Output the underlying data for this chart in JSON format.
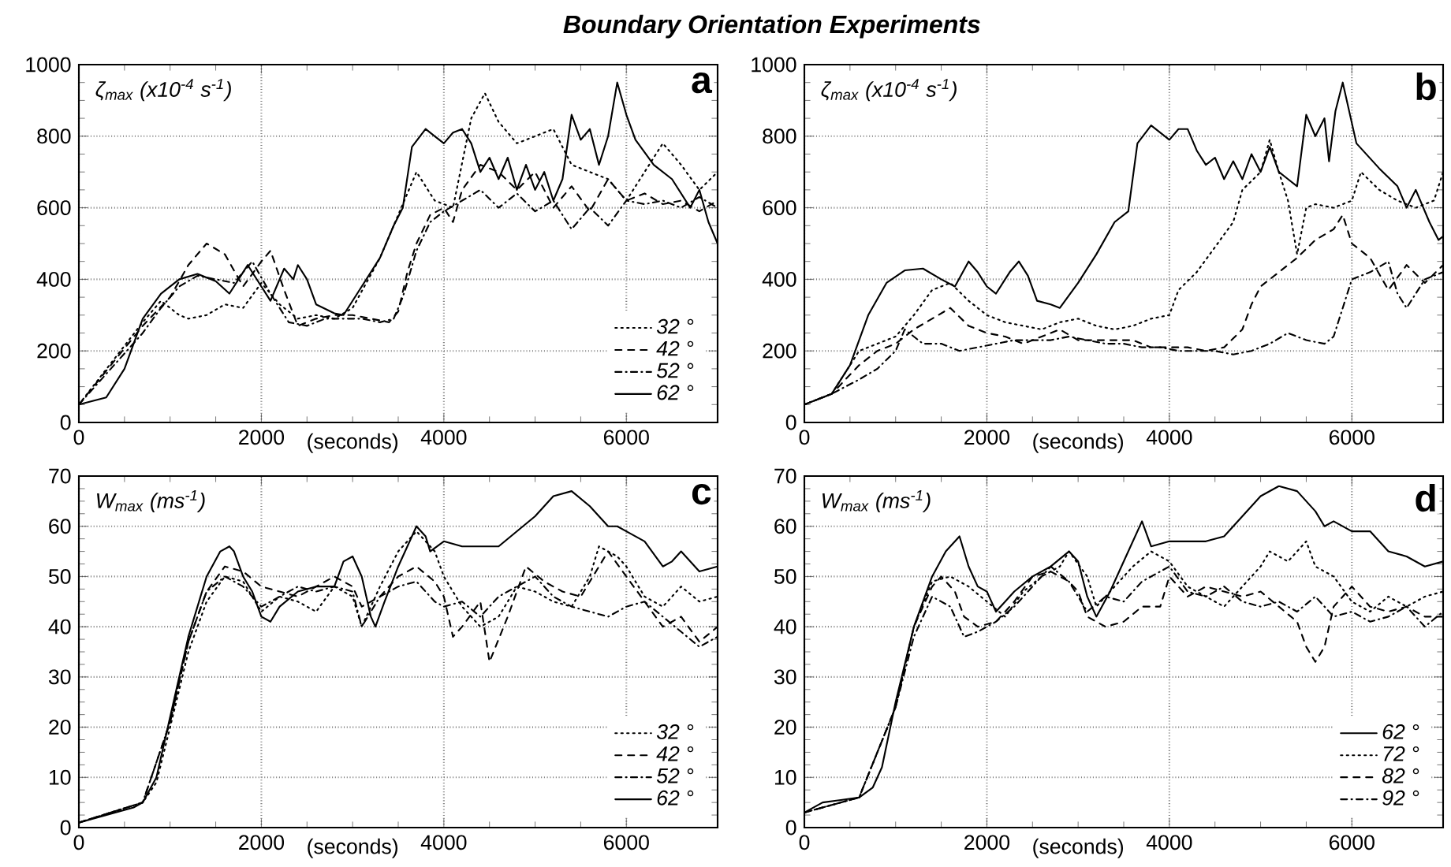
{
  "chart_data": [
    {
      "type": "line",
      "title": "Boundary Orientation Experiments",
      "xlabel": "(seconds)",
      "ylabel": "ζ$_{max}$ (x10$^{-4}$ s$^{-1}$)",
      "annotations": [
        "a"
      ],
      "xlim": [
        0,
        7000
      ],
      "ylim": [
        0,
        1000
      ],
      "xticks": [
        0,
        2000,
        4000,
        6000
      ],
      "yticks": [
        0,
        200,
        400,
        600,
        800,
        1000
      ],
      "grid": true,
      "legend": "bottom right",
      "marker": "none",
      "series": [
        {
          "name": "32 °",
          "color": "#000000",
          "line_style": "dotted",
          "x": [
            0,
            700,
            900,
            1100,
            1200,
            1400,
            1600,
            1800,
            2000,
            2200,
            2400,
            2600,
            2800,
            3000,
            3300,
            3500,
            3700,
            3900,
            4100,
            4300,
            4450,
            4600,
            4800,
            5000,
            5200,
            5400,
            5600,
            5800,
            6000,
            6200,
            6400,
            6600,
            6800,
            7000
          ],
          "values": [
            50,
            280,
            340,
            300,
            290,
            300,
            330,
            320,
            390,
            330,
            290,
            300,
            290,
            320,
            460,
            580,
            700,
            620,
            600,
            850,
            920,
            840,
            780,
            800,
            820,
            720,
            700,
            680,
            620,
            700,
            780,
            720,
            650,
            700
          ]
        },
        {
          "name": "42 °",
          "color": "#000000",
          "line_style": "dashed",
          "x": [
            0,
            700,
            1000,
            1200,
            1400,
            1600,
            1800,
            2000,
            2100,
            2250,
            2400,
            2600,
            2800,
            3000,
            3200,
            3400,
            3500,
            3600,
            3700,
            3850,
            4000,
            4100,
            4200,
            4400,
            4600,
            4800,
            5000,
            5200,
            5400,
            5600,
            5800,
            6000,
            6200,
            6400,
            6600,
            6800,
            7000
          ],
          "values": [
            50,
            270,
            350,
            440,
            500,
            470,
            380,
            450,
            480,
            370,
            270,
            290,
            300,
            300,
            290,
            280,
            310,
            420,
            500,
            580,
            600,
            560,
            650,
            720,
            700,
            650,
            700,
            600,
            660,
            590,
            680,
            620,
            640,
            610,
            620,
            590,
            620
          ]
        },
        {
          "name": "52 °",
          "color": "#000000",
          "line_style": "dashdot",
          "x": [
            0,
            700,
            900,
            1100,
            1300,
            1500,
            1700,
            1900,
            2100,
            2300,
            2500,
            2700,
            2900,
            3100,
            3300,
            3450,
            3550,
            3700,
            3850,
            4000,
            4200,
            4400,
            4600,
            4800,
            5000,
            5200,
            5400,
            5600,
            5800,
            6000,
            6200,
            6400,
            6600,
            6800,
            7000
          ],
          "values": [
            50,
            250,
            320,
            380,
            410,
            400,
            390,
            450,
            360,
            280,
            270,
            290,
            290,
            290,
            280,
            290,
            350,
            480,
            560,
            590,
            620,
            650,
            600,
            640,
            590,
            620,
            540,
            600,
            550,
            620,
            610,
            620,
            600,
            630,
            600
          ]
        },
        {
          "name": "62 °",
          "color": "#000000",
          "line_style": "solid",
          "x": [
            0,
            300,
            500,
            700,
            900,
            1100,
            1300,
            1500,
            1650,
            1800,
            1850,
            2000,
            2100,
            2250,
            2350,
            2400,
            2500,
            2600,
            2800,
            2900,
            3100,
            3300,
            3450,
            3550,
            3650,
            3800,
            3900,
            4000,
            4100,
            4200,
            4300,
            4400,
            4500,
            4600,
            4700,
            4800,
            4900,
            5000,
            5100,
            5200,
            5300,
            5400,
            5500,
            5600,
            5700,
            5800,
            5900,
            6000,
            6100,
            6300,
            6500,
            6700,
            6800,
            6900,
            7000
          ],
          "values": [
            50,
            70,
            150,
            290,
            360,
            400,
            415,
            395,
            360,
            420,
            440,
            380,
            340,
            430,
            400,
            440,
            400,
            330,
            305,
            300,
            380,
            460,
            550,
            600,
            770,
            820,
            800,
            780,
            810,
            820,
            780,
            700,
            740,
            680,
            740,
            650,
            720,
            650,
            700,
            620,
            680,
            860,
            790,
            820,
            720,
            800,
            950,
            860,
            790,
            720,
            680,
            600,
            650,
            560,
            500
          ]
        }
      ]
    },
    {
      "type": "line",
      "xlabel": "(seconds)",
      "ylabel": "ζ$_{max}$ (x10$^{-4}$ s$^{-1}$)",
      "annotations": [
        "b"
      ],
      "xlim": [
        0,
        7000
      ],
      "ylim": [
        0,
        1000
      ],
      "xticks": [
        0,
        2000,
        4000,
        6000
      ],
      "yticks": [
        0,
        200,
        400,
        600,
        800,
        1000
      ],
      "grid": true,
      "marker": "none",
      "series": [
        {
          "color": "#000000",
          "line_style": "solid",
          "x": [
            0,
            300,
            500,
            700,
            900,
            1100,
            1300,
            1500,
            1650,
            1800,
            1900,
            2000,
            2100,
            2250,
            2350,
            2450,
            2550,
            2700,
            2800,
            3000,
            3200,
            3400,
            3550,
            3650,
            3800,
            4000,
            4100,
            4200,
            4300,
            4400,
            4500,
            4600,
            4700,
            4800,
            4900,
            5000,
            5100,
            5200,
            5300,
            5400,
            5500,
            5600,
            5700,
            5750,
            5820,
            5900,
            6050,
            6300,
            6500,
            6600,
            6700,
            6850,
            6950,
            7000
          ],
          "values": [
            50,
            80,
            160,
            300,
            390,
            425,
            430,
            400,
            380,
            450,
            420,
            380,
            360,
            420,
            450,
            410,
            340,
            330,
            320,
            390,
            470,
            560,
            590,
            780,
            830,
            790,
            820,
            820,
            760,
            720,
            740,
            680,
            730,
            680,
            750,
            700,
            770,
            700,
            680,
            660,
            860,
            800,
            850,
            730,
            870,
            950,
            780,
            710,
            660,
            600,
            650,
            560,
            510,
            520
          ]
        },
        {
          "color": "#000000",
          "line_style": "dotted",
          "x": [
            0,
            300,
            600,
            800,
            1000,
            1200,
            1400,
            1600,
            1800,
            2000,
            2200,
            2400,
            2600,
            2800,
            3000,
            3200,
            3400,
            3600,
            3800,
            4000,
            4100,
            4300,
            4500,
            4700,
            4800,
            5000,
            5100,
            5200,
            5300,
            5400,
            5500,
            5600,
            5800,
            6000,
            6100,
            6300,
            6500,
            6700,
            6900,
            7000
          ],
          "values": [
            50,
            80,
            200,
            220,
            240,
            300,
            370,
            390,
            340,
            300,
            280,
            270,
            260,
            280,
            290,
            270,
            260,
            270,
            290,
            300,
            370,
            420,
            490,
            560,
            650,
            700,
            790,
            700,
            620,
            470,
            600,
            610,
            600,
            620,
            700,
            650,
            620,
            600,
            620,
            700
          ]
        },
        {
          "color": "#000000",
          "line_style": "dashed",
          "x": [
            0,
            300,
            600,
            800,
            1000,
            1200,
            1400,
            1600,
            1800,
            2000,
            2200,
            2400,
            2600,
            2800,
            3000,
            3200,
            3400,
            3600,
            3800,
            4000,
            4200,
            4400,
            4600,
            4800,
            4900,
            5000,
            5200,
            5400,
            5600,
            5800,
            5900,
            6000,
            6200,
            6400,
            6600,
            6800,
            7000
          ],
          "values": [
            50,
            80,
            160,
            200,
            220,
            260,
            290,
            320,
            270,
            250,
            240,
            220,
            240,
            260,
            230,
            230,
            230,
            230,
            210,
            210,
            210,
            200,
            210,
            260,
            330,
            380,
            420,
            460,
            510,
            540,
            580,
            500,
            460,
            370,
            440,
            390,
            440
          ]
        },
        {
          "color": "#000000",
          "line_style": "dashdot",
          "x": [
            0,
            300,
            600,
            800,
            1000,
            1100,
            1300,
            1500,
            1700,
            1900,
            2100,
            2300,
            2500,
            2700,
            2900,
            3100,
            3300,
            3500,
            3700,
            3900,
            4100,
            4300,
            4500,
            4700,
            4900,
            5100,
            5300,
            5500,
            5700,
            5800,
            5900,
            6000,
            6200,
            6400,
            6500,
            6600,
            6800,
            7000
          ],
          "values": [
            50,
            80,
            120,
            150,
            200,
            260,
            220,
            220,
            200,
            210,
            220,
            230,
            230,
            230,
            240,
            230,
            220,
            220,
            210,
            210,
            200,
            200,
            200,
            190,
            200,
            220,
            250,
            230,
            220,
            240,
            320,
            400,
            420,
            450,
            360,
            320,
            400,
            420
          ]
        }
      ]
    },
    {
      "type": "line",
      "xlabel": "(seconds)",
      "ylabel": "W$_{max}$ (ms$^{-1}$)",
      "annotations": [
        "c"
      ],
      "xlim": [
        0,
        7000
      ],
      "ylim": [
        0,
        70
      ],
      "xticks": [
        0,
        2000,
        4000,
        6000
      ],
      "yticks": [
        0,
        10,
        20,
        30,
        40,
        50,
        60,
        70
      ],
      "grid": true,
      "legend": "bottom right",
      "marker": "none",
      "series": [
        {
          "name": "32 °",
          "color": "#000000",
          "line_style": "dotted",
          "x": [
            0,
            700,
            850,
            1000,
            1200,
            1400,
            1600,
            1800,
            2000,
            2200,
            2400,
            2600,
            2800,
            3000,
            3100,
            3300,
            3500,
            3700,
            3900,
            4000,
            4200,
            4400,
            4600,
            4800,
            5000,
            5200,
            5400,
            5600,
            5700,
            5900,
            6000,
            6200,
            6400,
            6600,
            6800,
            7000
          ],
          "values": [
            1,
            5,
            9,
            20,
            35,
            45,
            50,
            49,
            43,
            46,
            45,
            43,
            48,
            46,
            40,
            48,
            55,
            59,
            55,
            50,
            44,
            40,
            42,
            48,
            47,
            45,
            44,
            50,
            56,
            54,
            52,
            46,
            44,
            48,
            45,
            46
          ]
        },
        {
          "name": "42 °",
          "color": "#000000",
          "line_style": "dashed",
          "x": [
            0,
            700,
            1000,
            1200,
            1400,
            1600,
            1800,
            2000,
            2200,
            2400,
            2600,
            2800,
            3000,
            3100,
            3300,
            3500,
            3700,
            3900,
            4000,
            4100,
            4200,
            4400,
            4500,
            4700,
            4900,
            5100,
            5300,
            5500,
            5700,
            5800,
            6000,
            6200,
            6400,
            6600,
            6800,
            7000
          ],
          "values": [
            1,
            5,
            21,
            37,
            47,
            52,
            51,
            48,
            47,
            46,
            48,
            50,
            48,
            44,
            46,
            50,
            52,
            49,
            46,
            38,
            40,
            45,
            33,
            42,
            52,
            49,
            47,
            46,
            52,
            55,
            50,
            45,
            40,
            42,
            37,
            40
          ]
        },
        {
          "name": "52 °",
          "color": "#000000",
          "line_style": "dashdot",
          "x": [
            0,
            700,
            1000,
            1200,
            1400,
            1600,
            1800,
            2000,
            2200,
            2400,
            2600,
            2800,
            3000,
            3100,
            3300,
            3500,
            3700,
            3900,
            4000,
            4200,
            4400,
            4600,
            4800,
            5000,
            5200,
            5400,
            5600,
            5800,
            6000,
            6200,
            6400,
            6600,
            6800,
            7000
          ],
          "values": [
            1,
            5,
            21,
            37,
            47,
            50,
            48,
            44,
            46,
            48,
            47,
            48,
            47,
            40,
            46,
            48,
            49,
            45,
            44,
            45,
            42,
            46,
            48,
            50,
            46,
            44,
            43,
            42,
            44,
            45,
            42,
            39,
            36,
            38
          ]
        },
        {
          "name": "62 °",
          "color": "#000000",
          "line_style": "solid",
          "x": [
            0,
            300,
            600,
            700,
            850,
            1000,
            1200,
            1400,
            1550,
            1650,
            1700,
            1800,
            1900,
            2000,
            2100,
            2200,
            2400,
            2600,
            2800,
            2900,
            3000,
            3100,
            3200,
            3250,
            3350,
            3500,
            3600,
            3700,
            3800,
            3850,
            4000,
            4200,
            4400,
            4600,
            4800,
            5000,
            5200,
            5400,
            5600,
            5700,
            5800,
            5900,
            6000,
            6200,
            6400,
            6500,
            6600,
            6800,
            7000
          ],
          "values": [
            1,
            2.5,
            4,
            5,
            10,
            22,
            38,
            50,
            55,
            56,
            55,
            50,
            47,
            42,
            41,
            44,
            47,
            48,
            48,
            53,
            54,
            50,
            42,
            40,
            45,
            52,
            56,
            60,
            58,
            55,
            57,
            56,
            56,
            56,
            59,
            62,
            66,
            67,
            64,
            62,
            60,
            60,
            59,
            57,
            52,
            53,
            55,
            51,
            52
          ]
        }
      ]
    },
    {
      "type": "line",
      "xlabel": "(seconds)",
      "ylabel": "W$_{max}$ (ms$^{-1}$)",
      "annotations": [
        "d"
      ],
      "xlim": [
        0,
        7000
      ],
      "ylim": [
        0,
        70
      ],
      "xticks": [
        0,
        2000,
        4000,
        6000
      ],
      "yticks": [
        0,
        10,
        20,
        30,
        40,
        50,
        60,
        70
      ],
      "grid": true,
      "legend": "bottom right",
      "marker": "none",
      "series": [
        {
          "name": "62 °",
          "color": "#000000",
          "line_style": "solid",
          "x": [
            0,
            200,
            400,
            600,
            750,
            850,
            1000,
            1200,
            1400,
            1550,
            1700,
            1800,
            1900,
            2000,
            2100,
            2300,
            2500,
            2700,
            2900,
            3000,
            3100,
            3200,
            3350,
            3500,
            3700,
            3800,
            4000,
            4200,
            4400,
            4600,
            4800,
            5000,
            5200,
            5400,
            5600,
            5700,
            5800,
            6000,
            6200,
            6400,
            6600,
            6800,
            7000
          ],
          "values": [
            3,
            5,
            5.5,
            6,
            8,
            12,
            25,
            40,
            50,
            55,
            58,
            52,
            48,
            47,
            43,
            47,
            50,
            52,
            55,
            53,
            46,
            42,
            47,
            53,
            61,
            56,
            57,
            57,
            57,
            58,
            62,
            66,
            68,
            67,
            63,
            60,
            61,
            59,
            59,
            55,
            54,
            52,
            53
          ]
        },
        {
          "name": "72 °",
          "color": "#000000",
          "line_style": "dotted",
          "x": [
            0,
            600,
            1000,
            1200,
            1400,
            1600,
            1800,
            2000,
            2200,
            2400,
            2600,
            2800,
            2900,
            3100,
            3200,
            3400,
            3600,
            3800,
            4000,
            4200,
            4400,
            4600,
            4800,
            5000,
            5100,
            5300,
            5500,
            5600,
            5800,
            6000,
            6200,
            6400,
            6600,
            6800,
            7000
          ],
          "values": [
            3,
            6,
            24,
            40,
            49,
            50,
            48,
            45,
            42,
            47,
            50,
            52,
            55,
            50,
            44,
            48,
            52,
            55,
            53,
            48,
            46,
            44,
            48,
            52,
            55,
            53,
            57,
            52,
            50,
            45,
            43,
            46,
            44,
            46,
            47
          ]
        },
        {
          "name": "82 °",
          "color": "#000000",
          "line_style": "dashed",
          "x": [
            0,
            600,
            1000,
            1200,
            1400,
            1500,
            1650,
            1750,
            1900,
            2100,
            2300,
            2500,
            2700,
            2900,
            3000,
            3100,
            3300,
            3500,
            3700,
            3900,
            4000,
            4200,
            4400,
            4600,
            4800,
            5000,
            5200,
            5400,
            5500,
            5600,
            5700,
            5800,
            6000,
            6200,
            6400,
            6600,
            6800,
            7000
          ],
          "values": [
            3,
            6,
            24,
            40,
            48,
            50,
            47,
            42,
            40,
            41,
            45,
            50,
            51,
            49,
            47,
            42,
            40,
            41,
            44,
            44,
            50,
            46,
            48,
            47,
            46,
            47,
            44,
            41,
            36,
            33,
            36,
            44,
            48,
            44,
            43,
            44,
            42,
            42
          ]
        },
        {
          "name": "92 °",
          "color": "#000000",
          "line_style": "dashdot",
          "x": [
            0,
            600,
            1000,
            1200,
            1400,
            1600,
            1750,
            1900,
            2100,
            2300,
            2500,
            2700,
            2900,
            3100,
            3300,
            3500,
            3700,
            3900,
            4000,
            4200,
            4400,
            4600,
            4800,
            5000,
            5200,
            5400,
            5600,
            5800,
            6000,
            6200,
            6400,
            6600,
            6800,
            7000
          ],
          "values": [
            3,
            6,
            24,
            38,
            46,
            44,
            38,
            39,
            41,
            44,
            48,
            52,
            49,
            43,
            46,
            45,
            49,
            51,
            52,
            47,
            46,
            48,
            45,
            44,
            45,
            43,
            46,
            42,
            43,
            41,
            42,
            44,
            40,
            43
          ]
        }
      ]
    }
  ]
}
